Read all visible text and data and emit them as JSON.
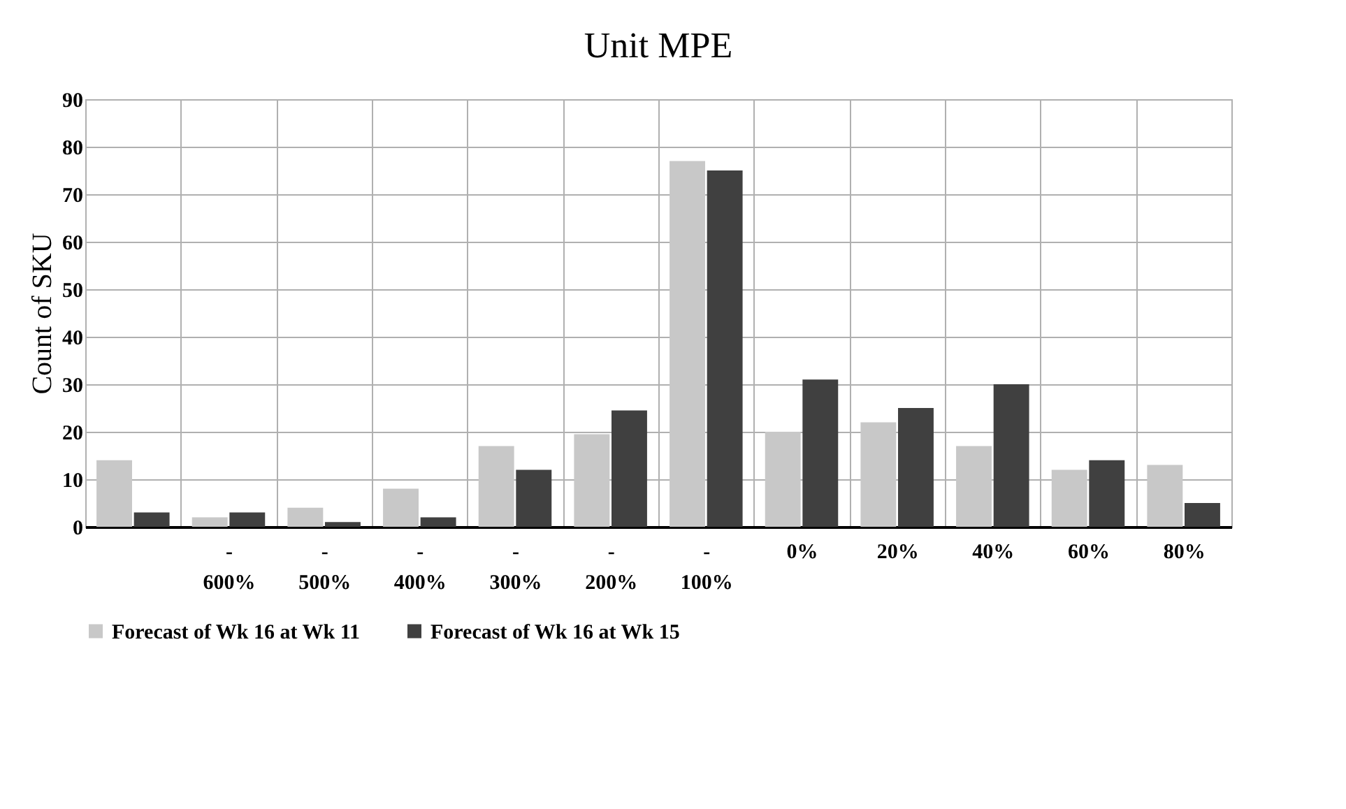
{
  "chart_data": {
    "type": "bar",
    "title": "Unit MPE",
    "ylabel": "Count of SKU",
    "categories": [
      null,
      "- 600%",
      "- 500%",
      "- 400%",
      "- 300%",
      "- 200%",
      "- 100%",
      "0%",
      "20%",
      "40%",
      "60%",
      "80%"
    ],
    "series": [
      {
        "name": "Forecast of Wk 16 at Wk 11",
        "color": "#c8c8c8",
        "values": [
          14,
          2,
          4,
          8,
          17,
          19.5,
          77,
          20,
          22,
          17,
          12,
          13
        ]
      },
      {
        "name": "Forecast of Wk 16 at Wk 15",
        "color": "#404040",
        "values": [
          3,
          3,
          1,
          2,
          12,
          24.5,
          75,
          31,
          25,
          30,
          14,
          5
        ]
      }
    ],
    "ylim": [
      0,
      90
    ],
    "yticks": [
      0,
      10,
      20,
      30,
      40,
      50,
      60,
      70,
      80,
      90
    ],
    "grid": true,
    "legend": "bottom"
  }
}
